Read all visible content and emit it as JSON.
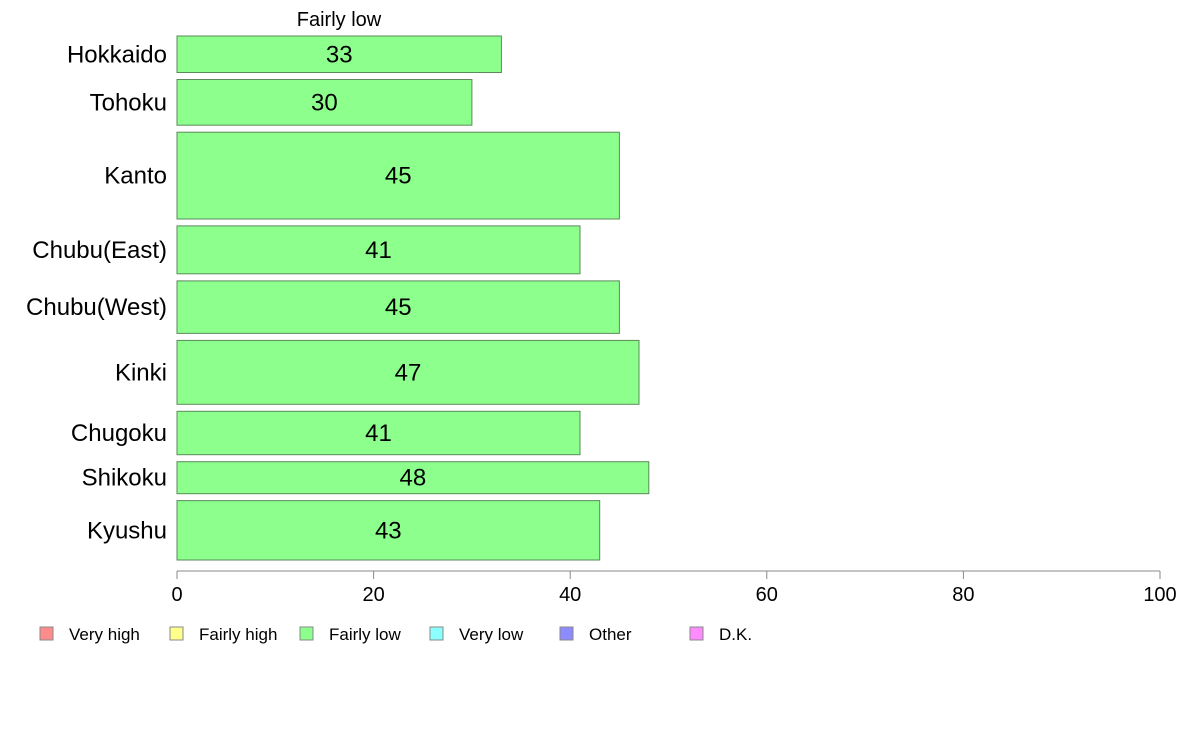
{
  "chart_data": {
    "type": "bar",
    "orientation": "horizontal",
    "series_label": "Fairly low",
    "categories": [
      "Hokkaido",
      "Tohoku",
      "Kanto",
      "Chubu(East)",
      "Chubu(West)",
      "Kinki",
      "Chugoku",
      "Shikoku",
      "Kyushu"
    ],
    "values": [
      33,
      30,
      45,
      41,
      45,
      47,
      41,
      48,
      43
    ],
    "data_labels": [
      "33",
      "30",
      "45",
      "41",
      "45",
      "47",
      "41",
      "48",
      "43"
    ],
    "bar_weights": [
      0.8,
      1.0,
      1.9,
      1.05,
      1.15,
      1.4,
      0.95,
      0.7,
      1.3
    ],
    "xlim": [
      0,
      100
    ],
    "xticks": [
      0,
      20,
      40,
      60,
      80,
      100
    ],
    "xtick_labels": [
      "0",
      "20",
      "40",
      "60",
      "80",
      "100"
    ],
    "bar_color": "#8cff8c",
    "bar_stroke": "#5a8a5a",
    "grid": false,
    "legend_position": "bottom",
    "legend": [
      {
        "label": "Very high",
        "color": "#ff8c8c"
      },
      {
        "label": "Fairly high",
        "color": "#ffff8c"
      },
      {
        "label": "Fairly low",
        "color": "#8cff8c"
      },
      {
        "label": "Very low",
        "color": "#8cffff"
      },
      {
        "label": "Other",
        "color": "#8c8cff"
      },
      {
        "label": "D.K.",
        "color": "#ff8cff"
      }
    ]
  }
}
